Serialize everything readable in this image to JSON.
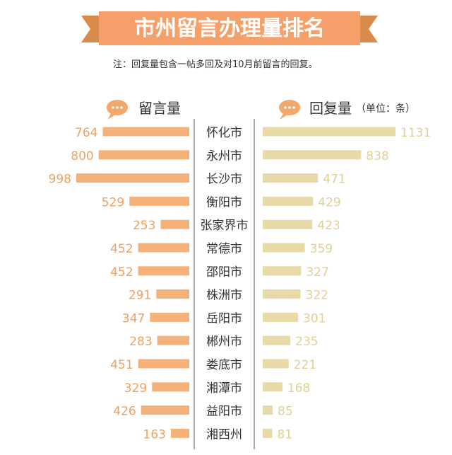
{
  "header": {
    "title": "市州留言办理量排名",
    "note": "注：回复量包含一帖多回及对10月前留言的回复。"
  },
  "colors": {
    "banner": "#F5A06A",
    "banner_ribbon": "#D98B4C",
    "left_bar": "#F4B17A",
    "right_bar": "#E8D9A8",
    "left_value_text": "#F0A060",
    "right_value_text": "#E2CF96",
    "icon": "#F3A76B",
    "divider": "#555555"
  },
  "chart_data": {
    "type": "bar",
    "categories": [
      "怀化市",
      "永州市",
      "长沙市",
      "衡阳市",
      "张家界市",
      "常德市",
      "邵阳市",
      "株洲市",
      "岳阳市",
      "郴州市",
      "娄底市",
      "湘潭市",
      "益阳市",
      "湘西州"
    ],
    "series": [
      {
        "name": "留言量",
        "values": [
          764,
          800,
          998,
          529,
          253,
          452,
          452,
          291,
          347,
          283,
          451,
          329,
          426,
          163
        ]
      },
      {
        "name": "回复量",
        "values": [
          1131,
          838,
          471,
          429,
          423,
          359,
          327,
          322,
          301,
          235,
          221,
          168,
          85,
          81
        ]
      }
    ],
    "unit_label": "（单位：条）",
    "legend_icons": [
      "speech-bubble-icon",
      "speech-bubble-icon"
    ]
  }
}
